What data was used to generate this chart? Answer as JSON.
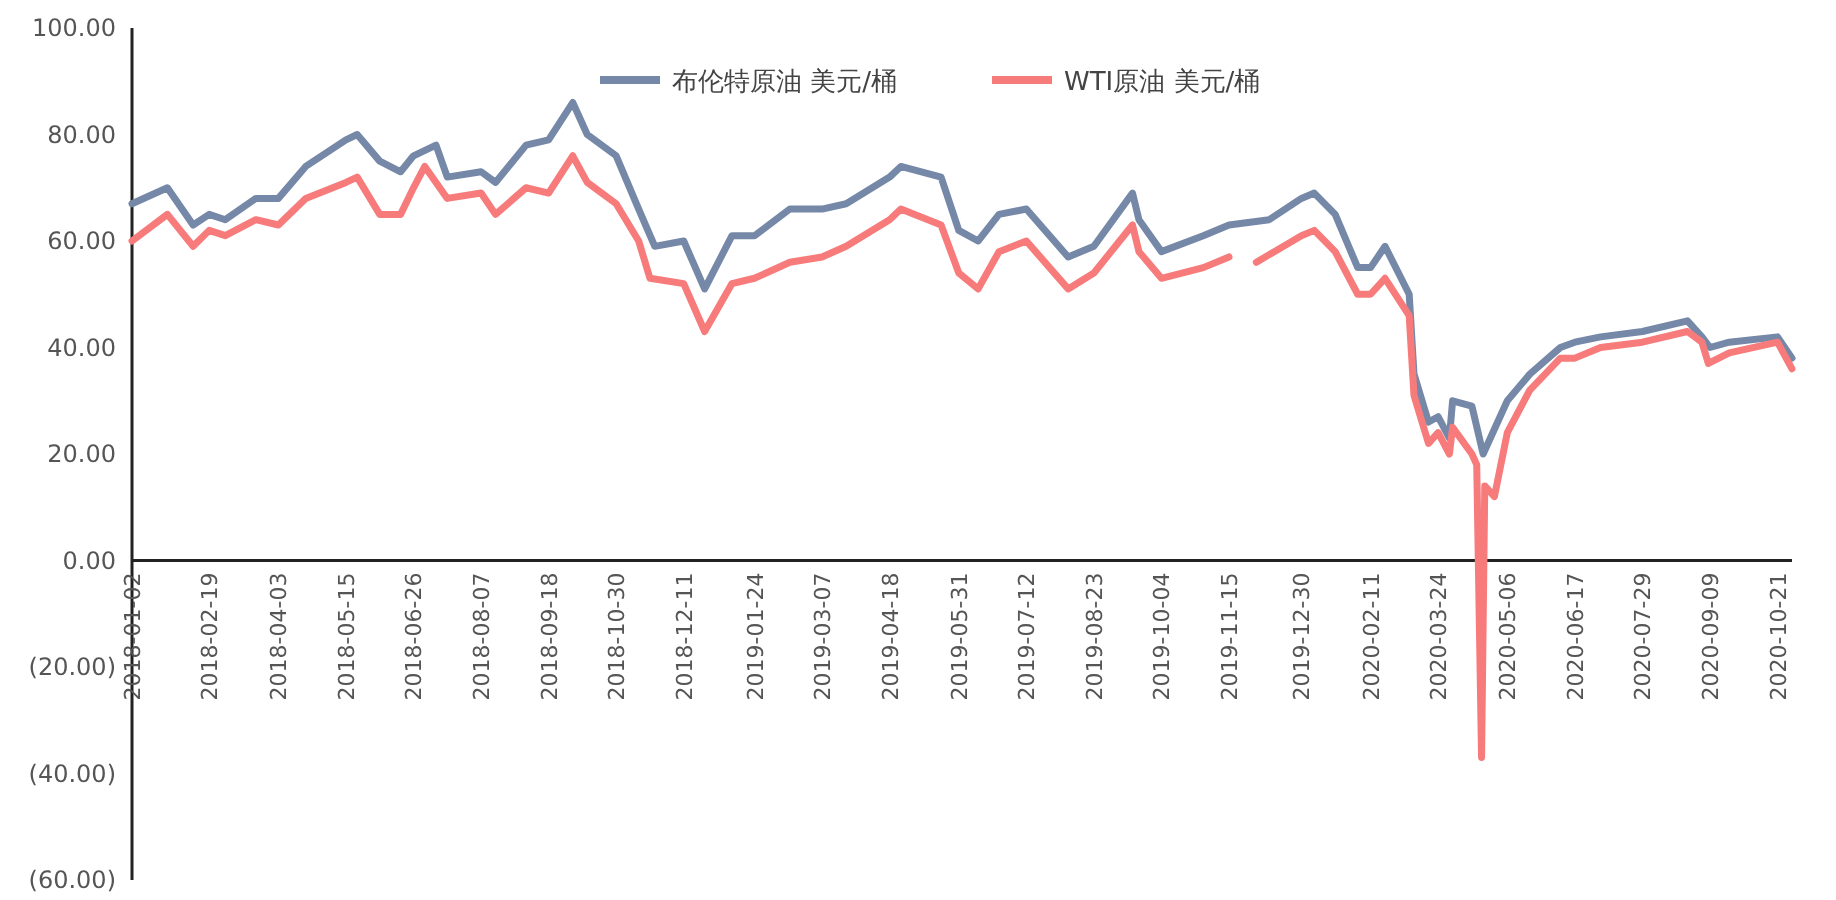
{
  "chart_data": {
    "type": "line",
    "legend": "top",
    "xlim": [
      "2018-01-02",
      "2020-10-30"
    ],
    "xticks": [
      "2018-01-02",
      "2018-02-19",
      "2018-04-03",
      "2018-05-15",
      "2018-06-26",
      "2018-08-07",
      "2018-09-18",
      "2018-10-30",
      "2018-12-11",
      "2019-01-24",
      "2019-03-07",
      "2019-04-18",
      "2019-05-31",
      "2019-07-12",
      "2019-08-23",
      "2019-10-04",
      "2019-11-15",
      "2019-12-30",
      "2020-02-11",
      "2020-03-24",
      "2020-05-06",
      "2020-06-17",
      "2020-07-29",
      "2020-09-09",
      "2020-10-21"
    ],
    "ylim": [
      -60,
      100
    ],
    "yticks": [
      {
        "value": -60,
        "label": "(60.00)"
      },
      {
        "value": -40,
        "label": "(40.00)"
      },
      {
        "value": -20,
        "label": "(20.00)"
      },
      {
        "value": 0,
        "label": "0.00"
      },
      {
        "value": 20,
        "label": "20.00"
      },
      {
        "value": 40,
        "label": "40.00"
      },
      {
        "value": 60,
        "label": "60.00"
      },
      {
        "value": 80,
        "label": "80.00"
      },
      {
        "value": 100,
        "label": "100.00"
      }
    ],
    "series": [
      {
        "name": "布伦特原油 美元/桶",
        "color": "#7588a8",
        "x": [
          "2018-01-02",
          "2018-01-24",
          "2018-02-09",
          "2018-02-19",
          "2018-03-01",
          "2018-03-20",
          "2018-04-03",
          "2018-04-20",
          "2018-05-15",
          "2018-05-22",
          "2018-06-05",
          "2018-06-18",
          "2018-06-26",
          "2018-07-10",
          "2018-07-17",
          "2018-08-07",
          "2018-08-16",
          "2018-09-04",
          "2018-09-18",
          "2018-10-03",
          "2018-10-12",
          "2018-10-30",
          "2018-11-13",
          "2018-11-23",
          "2018-12-11",
          "2018-12-24",
          "2019-01-10",
          "2019-01-24",
          "2019-02-15",
          "2019-03-07",
          "2019-03-22",
          "2019-04-18",
          "2019-04-25",
          "2019-05-20",
          "2019-05-31",
          "2019-06-12",
          "2019-06-25",
          "2019-07-12",
          "2019-08-07",
          "2019-08-23",
          "2019-09-16",
          "2019-09-20",
          "2019-10-04",
          "2019-10-30",
          "2019-11-15",
          "2019-12-10",
          "2019-12-30",
          "2020-01-07",
          "2020-01-20",
          "2020-02-03",
          "2020-02-11",
          "2020-02-20",
          "2020-03-06",
          "2020-03-09",
          "2020-03-18",
          "2020-03-24",
          "2020-03-31",
          "2020-04-02",
          "2020-04-14",
          "2020-04-21",
          "2020-05-06",
          "2020-05-20",
          "2020-06-08",
          "2020-06-17",
          "2020-07-03",
          "2020-07-29",
          "2020-08-26",
          "2020-09-04",
          "2020-09-09",
          "2020-09-21",
          "2020-10-21",
          "2020-10-30"
        ],
        "values": [
          67,
          70,
          63,
          65,
          64,
          68,
          68,
          74,
          79,
          80,
          75,
          73,
          76,
          78,
          72,
          73,
          71,
          78,
          79,
          86,
          80,
          76,
          66,
          59,
          60,
          51,
          61,
          61,
          66,
          66,
          67,
          72,
          74,
          72,
          62,
          60,
          65,
          66,
          57,
          59,
          69,
          64,
          58,
          61,
          63,
          64,
          68,
          69,
          65,
          55,
          55,
          59,
          50,
          35,
          26,
          27,
          23,
          30,
          29,
          20,
          30,
          35,
          40,
          41,
          42,
          43,
          45,
          42,
          40,
          41,
          42,
          38
        ]
      },
      {
        "name": "WTI原油 美元/桶",
        "color": "#f77b7b",
        "x": [
          "2018-01-02",
          "2018-01-24",
          "2018-02-09",
          "2018-02-19",
          "2018-03-01",
          "2018-03-20",
          "2018-04-03",
          "2018-04-20",
          "2018-05-15",
          "2018-05-22",
          "2018-06-05",
          "2018-06-18",
          "2018-06-26",
          "2018-07-03",
          "2018-07-17",
          "2018-08-07",
          "2018-08-16",
          "2018-09-04",
          "2018-09-18",
          "2018-10-03",
          "2018-10-12",
          "2018-10-30",
          "2018-11-13",
          "2018-11-20",
          "2018-12-11",
          "2018-12-24",
          "2019-01-10",
          "2019-01-24",
          "2019-02-15",
          "2019-03-07",
          "2019-03-22",
          "2019-04-18",
          "2019-04-25",
          "2019-05-20",
          "2019-05-31",
          "2019-06-12",
          "2019-06-25",
          "2019-07-12",
          "2019-08-07",
          "2019-08-23",
          "2019-09-16",
          "2019-09-20",
          "2019-10-04",
          "2019-10-30",
          "2019-11-15",
          "2019-11-25",
          "2019-12-02",
          "2019-12-30",
          "2020-01-07",
          "2020-01-20",
          "2020-02-03",
          "2020-02-11",
          "2020-02-20",
          "2020-03-06",
          "2020-03-09",
          "2020-03-18",
          "2020-03-24",
          "2020-03-31",
          "2020-04-02",
          "2020-04-14",
          "2020-04-17",
          "2020-04-20",
          "2020-04-22",
          "2020-04-28",
          "2020-05-06",
          "2020-05-20",
          "2020-06-08",
          "2020-06-17",
          "2020-07-03",
          "2020-07-29",
          "2020-08-26",
          "2020-09-04",
          "2020-09-08",
          "2020-09-21",
          "2020-10-21",
          "2020-10-30"
        ],
        "values": [
          60,
          65,
          59,
          62,
          61,
          64,
          63,
          68,
          71,
          72,
          65,
          65,
          70,
          74,
          68,
          69,
          65,
          70,
          69,
          76,
          71,
          67,
          60,
          53,
          52,
          43,
          52,
          53,
          56,
          57,
          59,
          64,
          66,
          63,
          54,
          51,
          58,
          60,
          51,
          54,
          63,
          58,
          53,
          55,
          57,
          null,
          56,
          61,
          62,
          58,
          50,
          50,
          53,
          46,
          31,
          22,
          24,
          20,
          25,
          20,
          18,
          -37,
          14,
          12,
          24,
          32,
          38,
          38,
          40,
          41,
          43,
          41,
          37,
          39,
          41,
          36
        ]
      }
    ]
  }
}
